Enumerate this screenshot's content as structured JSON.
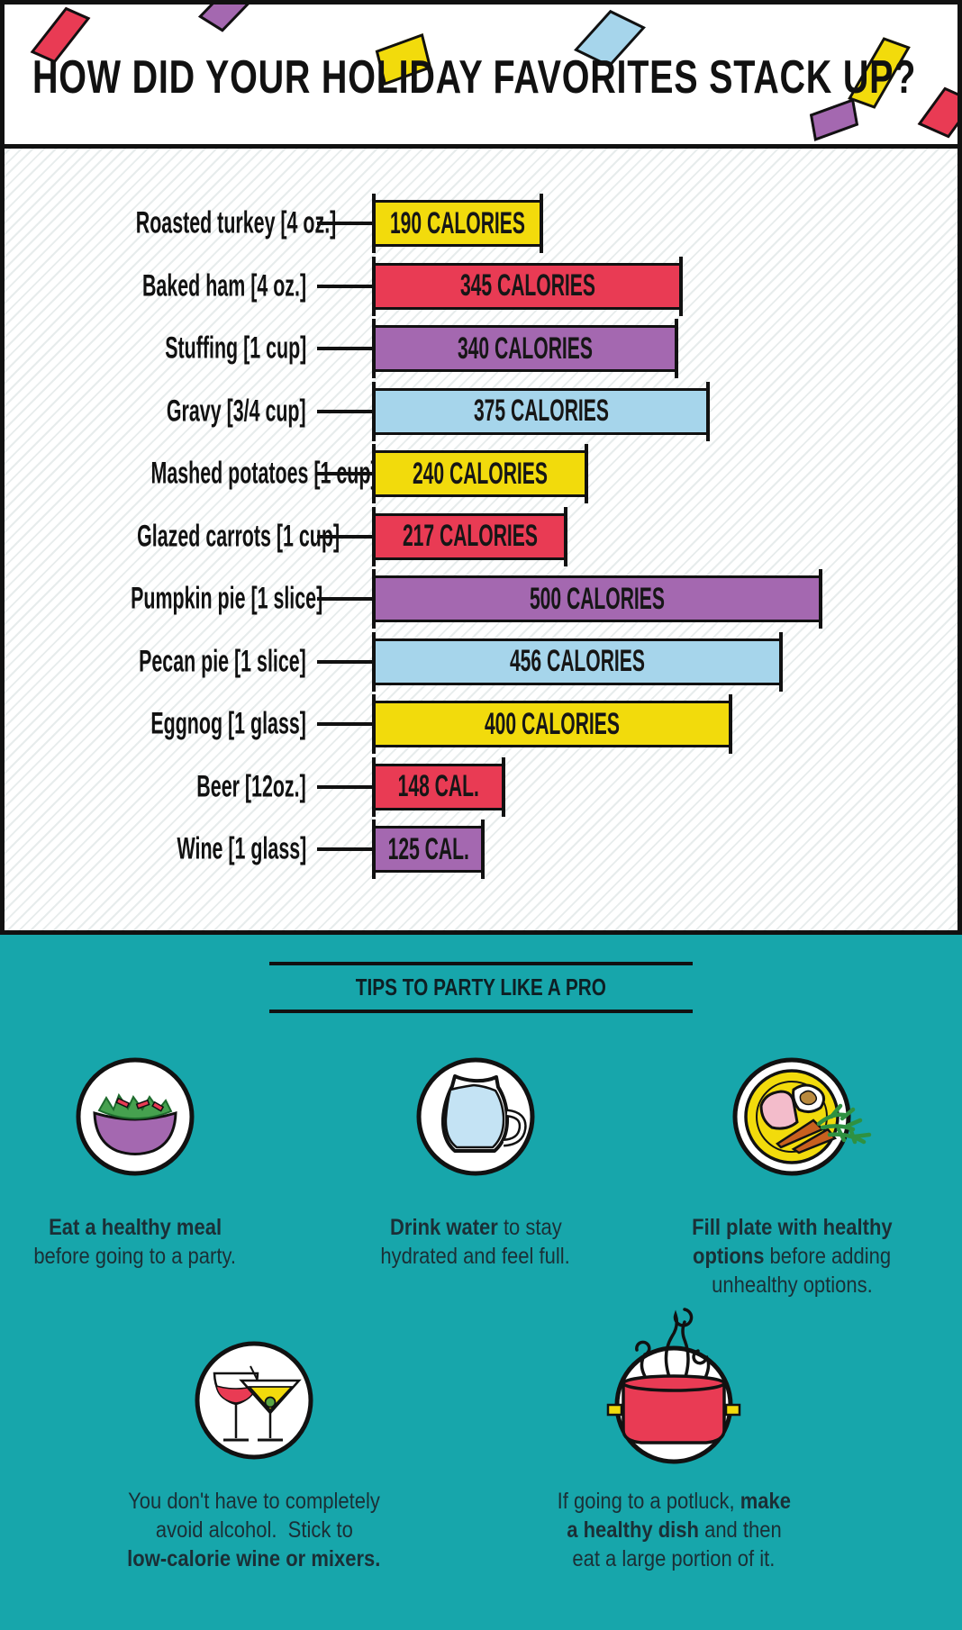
{
  "header": {
    "title": "HOW DID YOUR HOLIDAY FAVORITES STACK UP?"
  },
  "colors": {
    "teal": "#17A6AB",
    "yellow": "#F2DB0C",
    "red": "#E93B54",
    "purple": "#A468B0",
    "blue": "#A6D5EB",
    "ink": "#111111",
    "tip_text": "#1B2F36"
  },
  "confetti": [
    {
      "color": "red"
    },
    {
      "color": "purple"
    },
    {
      "color": "yellow"
    },
    {
      "color": "blue"
    },
    {
      "color": "yellow"
    },
    {
      "color": "purple"
    },
    {
      "color": "red"
    }
  ],
  "chart_data": {
    "type": "bar",
    "orientation": "horizontal",
    "title": "HOW DID YOUR HOLIDAY FAVORITES STACK UP?",
    "unit": "calories",
    "xlim": [
      0,
      500
    ],
    "grid": false,
    "legend": false,
    "categories": [
      "Roasted turkey [4 oz.]",
      "Baked ham [4 oz.]",
      "Stuffing [1 cup]",
      "Gravy [3/4 cup]",
      "Mashed potatoes [1 cup]",
      "Glazed carrots [1 cup]",
      "Pumpkin pie [1 slice]",
      "Pecan pie [1 slice]",
      "Eggnog [1 glass]",
      "Beer [12oz.]",
      "Wine [1 glass]"
    ],
    "values": [
      190,
      345,
      340,
      375,
      240,
      217,
      500,
      456,
      400,
      148,
      125
    ],
    "bar_labels": [
      "190 CALORIES",
      "345 CALORIES",
      "340 CALORIES",
      "375 CALORIES",
      "240 CALORIES",
      "217 CALORIES",
      "500 CALORIES",
      "456 CALORIES",
      "400 CALORIES",
      "148 CAL.",
      "125 CAL."
    ],
    "bar_colors": [
      "yellow",
      "red",
      "purple",
      "blue",
      "yellow",
      "red",
      "purple",
      "blue",
      "yellow",
      "red",
      "purple"
    ]
  },
  "tips_section": {
    "heading": "TIPS TO PARTY LIKE A PRO",
    "tips": [
      {
        "icon": "salad-bowl-icon",
        "lines": [
          [
            {
              "t": "Eat a healthy meal",
              "b": true
            }
          ],
          [
            {
              "t": "before going to a party.",
              "b": false
            }
          ]
        ]
      },
      {
        "icon": "water-pitcher-icon",
        "lines": [
          [
            {
              "t": "Drink water",
              "b": true
            },
            {
              "t": " to stay",
              "b": false
            }
          ],
          [
            {
              "t": "hydrated and feel full.",
              "b": false
            }
          ]
        ]
      },
      {
        "icon": "dinner-plate-icon",
        "lines": [
          [
            {
              "t": "Fill plate with healthy",
              "b": true
            }
          ],
          [
            {
              "t": "options",
              "b": true
            },
            {
              "t": " before adding",
              "b": false
            }
          ],
          [
            {
              "t": "unhealthy options.",
              "b": false
            }
          ]
        ]
      },
      {
        "icon": "cocktail-glasses-icon",
        "lines": [
          [
            {
              "t": "You don't have to completely",
              "b": false
            }
          ],
          [
            {
              "t": "avoid alcohol.  Stick to",
              "b": false
            }
          ],
          [
            {
              "t": "low-calorie wine or mixers.",
              "b": true
            }
          ]
        ]
      },
      {
        "icon": "cooking-pot-icon",
        "lines": [
          [
            {
              "t": "If going to a potluck, ",
              "b": false
            },
            {
              "t": "make",
              "b": true
            }
          ],
          [
            {
              "t": "a healthy dish",
              "b": true
            },
            {
              "t": " and then",
              "b": false
            }
          ],
          [
            {
              "t": "eat a large portion of it.",
              "b": false
            }
          ]
        ]
      }
    ]
  }
}
